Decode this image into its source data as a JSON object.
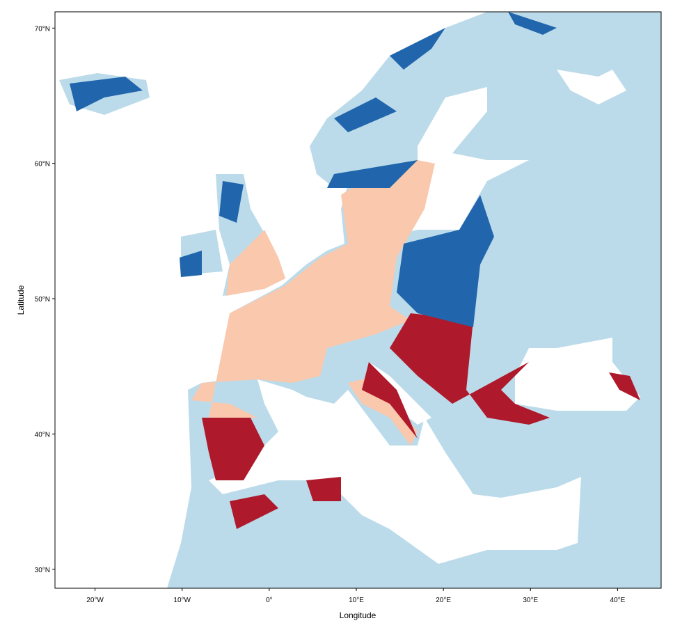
{
  "map": {
    "xlabel": "Longitude",
    "ylabel": "Latitude",
    "xlim": [
      -24.6,
      45
    ],
    "ylim": [
      28.6,
      71.2
    ],
    "xticks": [
      {
        "value": -20,
        "label": "20°W"
      },
      {
        "value": -10,
        "label": "10°W"
      },
      {
        "value": 0,
        "label": "0°"
      },
      {
        "value": 10,
        "label": "10°E"
      },
      {
        "value": 20,
        "label": "20°E"
      },
      {
        "value": 30,
        "label": "30°E"
      },
      {
        "value": 40,
        "label": "40°E"
      }
    ],
    "yticks": [
      {
        "value": 30,
        "label": "30°N"
      },
      {
        "value": 40,
        "label": "40°N"
      },
      {
        "value": 50,
        "label": "50°N"
      },
      {
        "value": 60,
        "label": "60°N"
      },
      {
        "value": 70,
        "label": "70°N"
      }
    ]
  }
}
